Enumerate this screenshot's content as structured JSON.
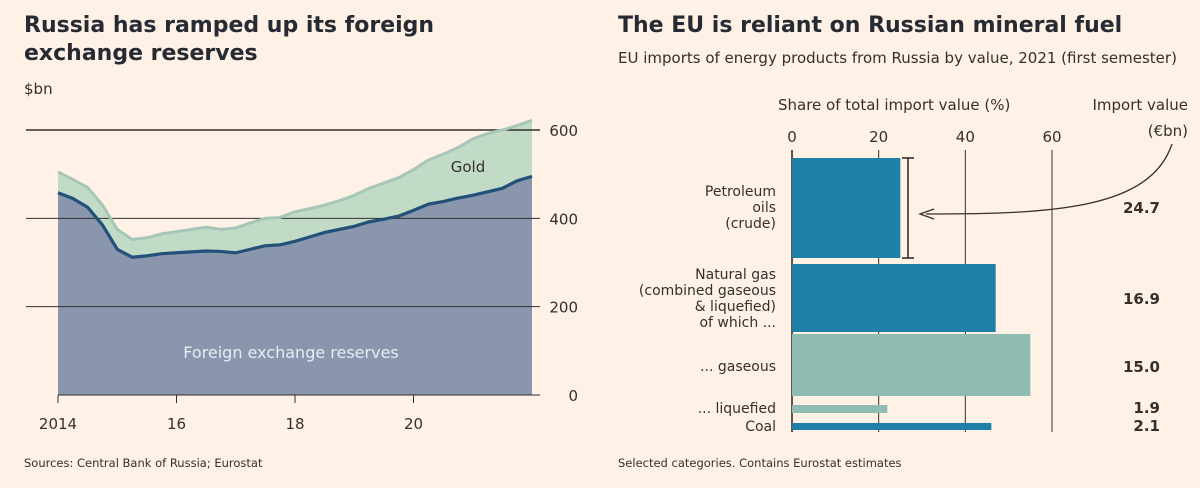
{
  "chart_data": [
    {
      "type": "area",
      "title": "Russia has ramped up its foreign exchange reserves",
      "ylabel": "$bn",
      "ylim": [
        0,
        600
      ],
      "yticks": [
        "0",
        "200",
        "400",
        "600"
      ],
      "xlim": [
        2014,
        2022
      ],
      "xticks": [
        {
          "value": 2014,
          "label": "2014"
        },
        {
          "value": 2016,
          "label": "16"
        },
        {
          "value": 2018,
          "label": "18"
        },
        {
          "value": 2020,
          "label": "20"
        }
      ],
      "grid": true,
      "x": [
        2014.0,
        2014.25,
        2014.5,
        2014.75,
        2015.0,
        2015.25,
        2015.5,
        2015.75,
        2016.0,
        2016.25,
        2016.5,
        2016.75,
        2017.0,
        2017.25,
        2017.5,
        2017.75,
        2018.0,
        2018.25,
        2018.5,
        2018.75,
        2019.0,
        2019.25,
        2019.5,
        2019.75,
        2020.0,
        2020.25,
        2020.5,
        2020.75,
        2021.0,
        2021.25,
        2021.5,
        2021.75,
        2022.0
      ],
      "series": [
        {
          "name": "Foreign exchange reserves",
          "values": [
            458,
            445,
            425,
            385,
            330,
            312,
            315,
            320,
            322,
            324,
            326,
            325,
            322,
            330,
            338,
            340,
            348,
            358,
            368,
            375,
            382,
            392,
            398,
            405,
            418,
            432,
            438,
            446,
            452,
            460,
            468,
            485,
            495
          ]
        },
        {
          "name": "Gold",
          "values": [
            505,
            488,
            470,
            430,
            375,
            352,
            356,
            365,
            370,
            375,
            380,
            375,
            378,
            390,
            400,
            402,
            415,
            422,
            430,
            440,
            452,
            468,
            480,
            492,
            510,
            532,
            545,
            560,
            580,
            592,
            600,
            610,
            622
          ]
        }
      ],
      "colors": {
        "fx": "#8a96ad",
        "gold": "#c2dbc7",
        "fx_line": "#23517a",
        "gold_line": "#a6c7b8"
      }
    },
    {
      "type": "bar",
      "title": "The EU is reliant on Russian mineral fuel",
      "subtitle": "EU imports of energy products from Russia by value, 2021 (first semester)",
      "xlabel": "Share of total import value (%)",
      "value_header": "Import value (€bn)",
      "xlim": [
        0,
        60
      ],
      "xticks": [
        "0",
        "20",
        "40",
        "60"
      ],
      "categories": [
        "Petroleum oils (crude)",
        "Natural gas (combined gaseous & liquefied) of which ...",
        "... gaseous",
        "... liquefied",
        "Coal"
      ],
      "category_lines": [
        [
          "Petroleum",
          "oils",
          "(crude)"
        ],
        [
          "Natural gas",
          "(combined gaseous",
          "& liquefied)",
          "of which ..."
        ],
        [
          "... gaseous"
        ],
        [
          "... liquefied"
        ],
        [
          "Coal"
        ]
      ],
      "values": [
        25,
        47,
        55,
        22,
        46
      ],
      "import_values": [
        "24.7",
        "16.9",
        "15.0",
        "1.9",
        "2.1"
      ],
      "colors": {
        "main": "#1f7fa6",
        "sub": "#8fbcb1"
      }
    }
  ],
  "left": {
    "source": "Sources: Central Bank of Russia; Eurostat",
    "area_labels": {
      "gold": "Gold",
      "fx": "Foreign exchange reserves"
    }
  },
  "right": {
    "note": "Selected categories. Contains Eurostat estimates"
  }
}
